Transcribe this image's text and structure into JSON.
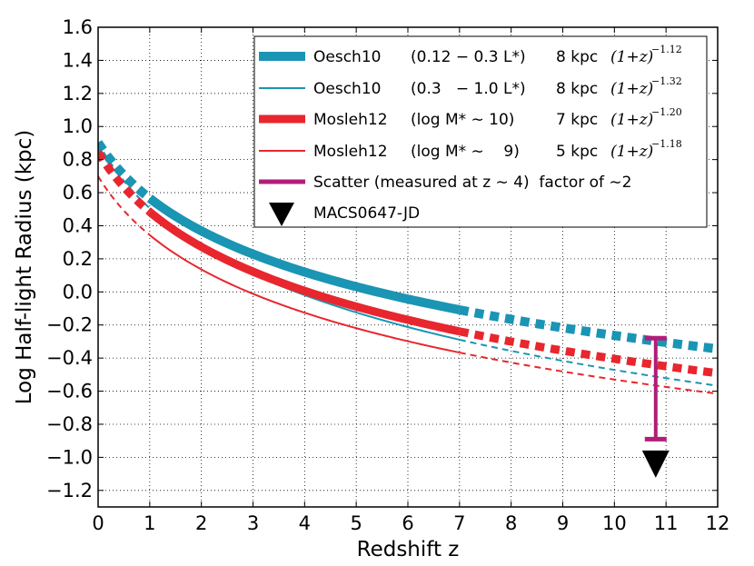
{
  "chart_data": {
    "type": "line",
    "xlabel": "Redshift  z",
    "ylabel": "Log Half-light Radius (kpc)",
    "xlim": [
      0,
      12
    ],
    "ylim": [
      -1.3,
      1.6
    ],
    "grid": true,
    "legend_position": "top-right",
    "xticks": [
      0,
      1,
      2,
      3,
      4,
      5,
      6,
      7,
      8,
      9,
      10,
      11,
      12
    ],
    "xtick_labels": [
      "0",
      "1",
      "2",
      "3",
      "4",
      "5",
      "6",
      "7",
      "8",
      "9",
      "10",
      "11",
      "12"
    ],
    "yticks": [
      1.6,
      1.4,
      1.2,
      1.0,
      0.8,
      0.6,
      0.4,
      0.2,
      0.0,
      -0.2,
      -0.4,
      -0.6,
      -0.8,
      -1.0,
      -1.2
    ],
    "ytick_labels": [
      "1.6",
      "1.4",
      "1.2",
      "1.0",
      "0.8",
      "0.6",
      "0.4",
      "0.2",
      "0.0",
      "−0.2",
      "−0.4",
      "−0.6",
      "−0.8",
      "−1.0",
      "−1.2"
    ],
    "series": [
      {
        "name": "Oesch10 (0.12 − 0.3 L*)",
        "label_name": "Oesch10",
        "label_range": "(0.12 − 0.3 L*)",
        "label_size": "8 kpc",
        "exponent": "−1.12",
        "r0_kpc": 8,
        "power": 1.12,
        "color": "#1a95b4",
        "style": "thick",
        "fit_range": [
          1,
          7
        ]
      },
      {
        "name": "Oesch10 (0.3 − 1.0 L*)",
        "label_name": "Oesch10",
        "label_range": "(0.3   − 1.0 L*)",
        "label_size": "8 kpc",
        "exponent": "−1.32",
        "r0_kpc": 8,
        "power": 1.32,
        "color": "#1a95b4",
        "style": "thin",
        "fit_range": [
          1,
          7
        ]
      },
      {
        "name": "Mosleh12 (log M* ∼ 10)",
        "label_name": "Mosleh12",
        "label_range": "(log M* ∼ 10)",
        "label_size": "7 kpc",
        "exponent": "−1.20",
        "r0_kpc": 7,
        "power": 1.2,
        "color": "#e8262e",
        "style": "thick",
        "fit_range": [
          1,
          7
        ]
      },
      {
        "name": "Mosleh12 (log M* ∼ 9)",
        "label_name": "Mosleh12",
        "label_range": "(log M* ∼    9)",
        "label_size": "5 kpc",
        "exponent": "−1.18",
        "r0_kpc": 5,
        "power": 1.18,
        "color": "#e8262e",
        "style": "thin",
        "fit_range": [
          1,
          7
        ]
      }
    ],
    "scatter_bar": {
      "label": "Scatter (measured at z ∼ 4)  factor of ∼2",
      "x": 10.8,
      "y_low": -0.89,
      "y_high": -0.28,
      "color": "#b01e79"
    },
    "upper_limit": {
      "label": "MACS0647-JD",
      "x": 10.8,
      "y": -1.03,
      "color": "#000000"
    },
    "legend_formula_base": "(1+z)"
  }
}
